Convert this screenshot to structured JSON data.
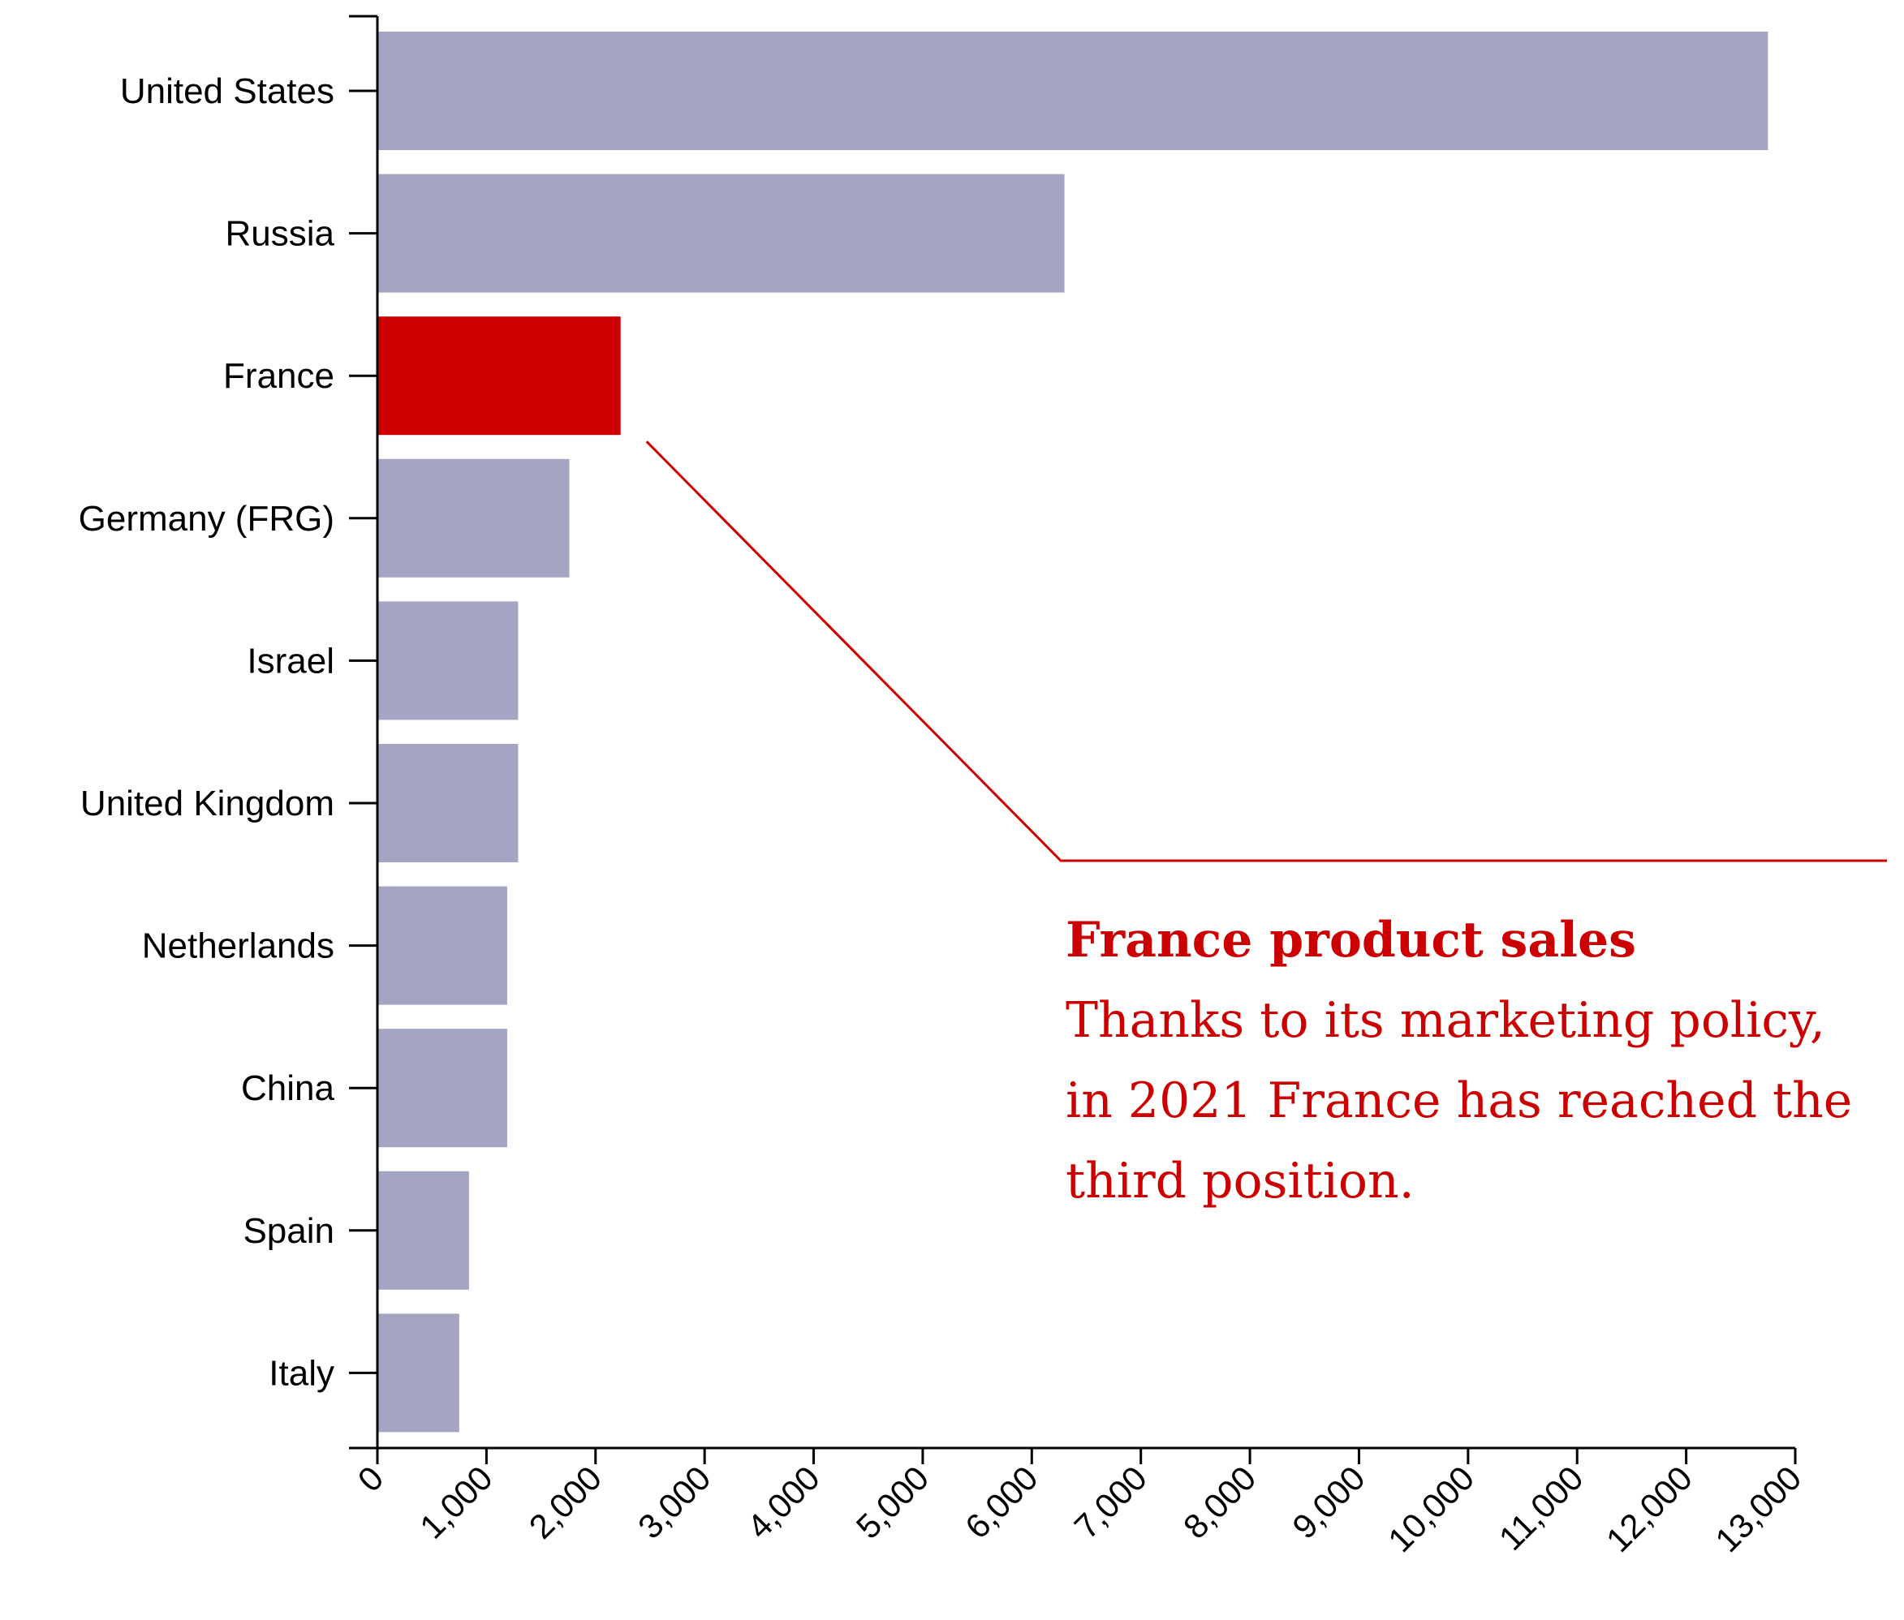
{
  "chart_data": {
    "type": "bar",
    "orientation": "horizontal",
    "categories": [
      "United States",
      "Russia",
      "France",
      "Germany (FRG)",
      "Israel",
      "United Kingdom",
      "Netherlands",
      "China",
      "Spain",
      "Italy"
    ],
    "values": [
      12750,
      6300,
      2230,
      1760,
      1290,
      1290,
      1190,
      1190,
      840,
      750
    ],
    "highlight": "France",
    "xlim": [
      0,
      13000
    ],
    "xticks": [
      "0",
      "1,000",
      "2,000",
      "3,000",
      "4,000",
      "5,000",
      "6,000",
      "7,000",
      "8,000",
      "9,000",
      "10,000",
      "11,000",
      "12,000",
      "13,000"
    ],
    "xtick_values": [
      0,
      1000,
      2000,
      3000,
      4000,
      5000,
      6000,
      7000,
      8000,
      9000,
      10000,
      11000,
      12000,
      13000
    ],
    "title": "",
    "xlabel": "",
    "ylabel": "",
    "grid": false,
    "colors": {
      "bar": "#a3a5c3",
      "highlight": "#cc0000",
      "axis": "#000000",
      "annotation": "#cc0000"
    }
  },
  "annotation": {
    "title": "France product sales",
    "body": "Thanks to its marketing policy, in 2021 France has reached the third position."
  }
}
